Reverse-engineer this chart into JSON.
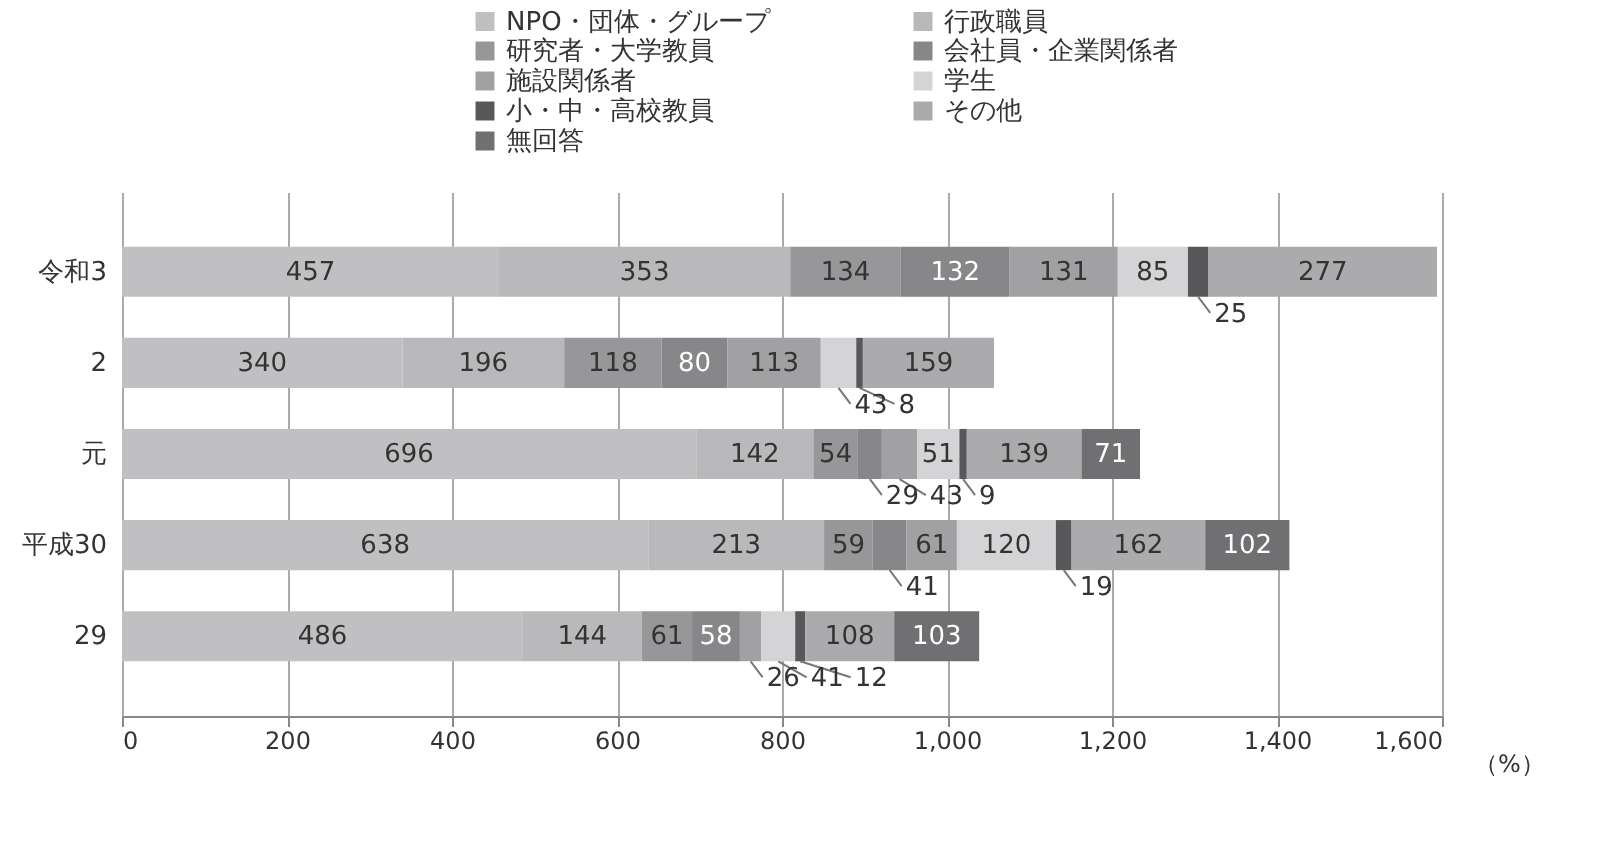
{
  "chart_data": {
    "type": "bar",
    "orientation": "horizontal",
    "stacked": true,
    "data_labels": true,
    "grid": "x",
    "legend": "top",
    "xlabel": "（%）",
    "categories": [
      "令和3",
      "2",
      "元",
      "平成30",
      "29"
    ],
    "xlim": [
      0,
      1600
    ],
    "xticks": [
      0,
      200,
      400,
      600,
      800,
      {
        "value": 1000,
        "label": "1,000"
      },
      {
        "value": 1200,
        "label": "1,200"
      },
      {
        "value": 1400,
        "label": "1,400"
      },
      {
        "value": 1600,
        "label": "1,600"
      }
    ],
    "series": [
      {
        "name": "NPO・団体・グループ",
        "color": "#c0c0c2",
        "values": [
          457,
          340,
          696,
          638,
          486
        ]
      },
      {
        "name": "行政職員",
        "color": "#b9b9bb",
        "values": [
          353,
          196,
          142,
          213,
          144
        ]
      },
      {
        "name": "研究者・大学教員",
        "color": "#97979a",
        "values": [
          134,
          118,
          54,
          59,
          61
        ]
      },
      {
        "name": "会社員・企業関係者",
        "color": "#87878a",
        "values": [
          132,
          80,
          29,
          41,
          58
        ]
      },
      {
        "name": "施設関係者",
        "color": "#a1a1a3",
        "values": [
          131,
          113,
          43,
          61,
          26
        ]
      },
      {
        "name": "学生",
        "color": "#d4d4d6",
        "values": [
          85,
          43,
          51,
          120,
          41
        ]
      },
      {
        "name": "小・中・高校教員",
        "color": "#58585a",
        "values": [
          25,
          8,
          9,
          19,
          12
        ]
      },
      {
        "name": "その他",
        "color": "#ababad",
        "values": [
          277,
          159,
          139,
          162,
          108
        ]
      },
      {
        "name": "無回答",
        "color": "#707073",
        "values": [
          null,
          null,
          71,
          102,
          103
        ]
      }
    ]
  }
}
